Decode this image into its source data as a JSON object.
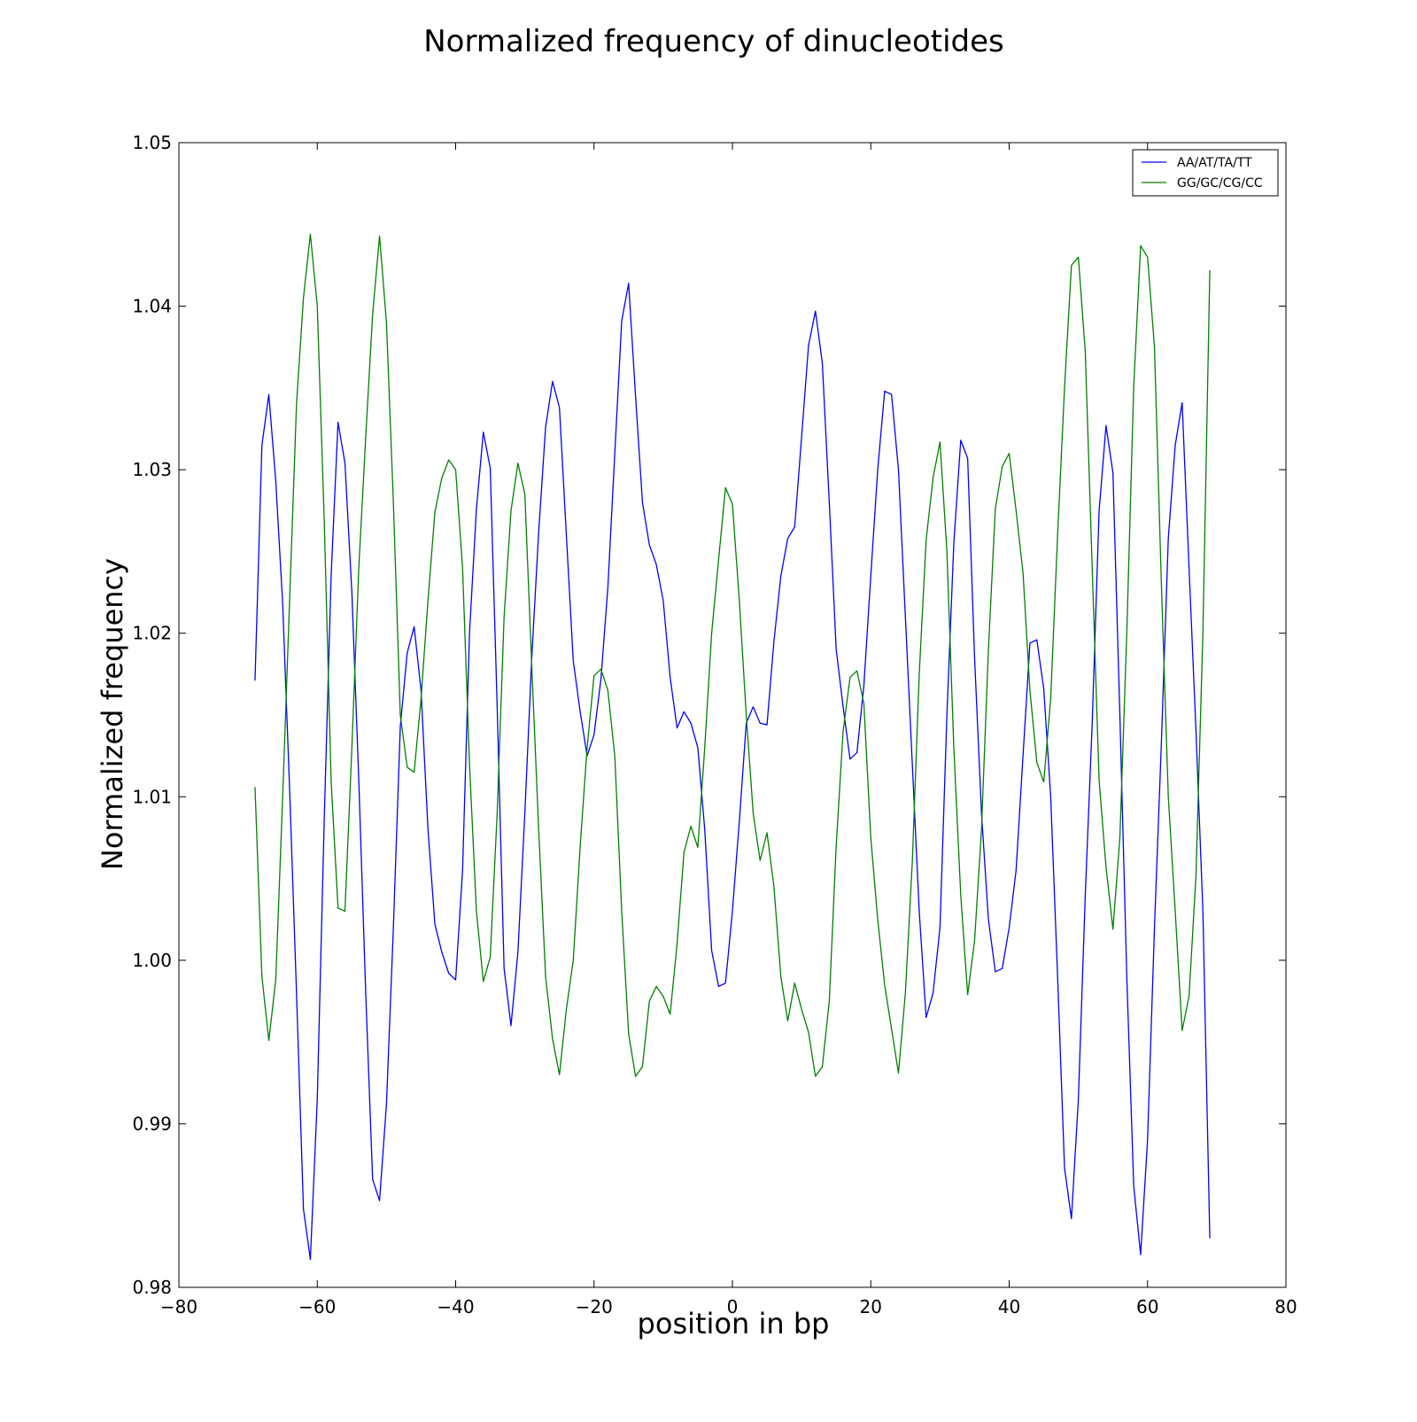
{
  "chart_data": {
    "type": "line",
    "title": "Normalized frequency of dinucleotides",
    "xlabel": "position in bp",
    "ylabel": "Normalized frequency",
    "xlim": [
      -80,
      80
    ],
    "ylim": [
      0.98,
      1.05
    ],
    "xticks": [
      -80,
      -60,
      -40,
      -20,
      0,
      20,
      40,
      60,
      80
    ],
    "xtick_labels": [
      "−80",
      "−60",
      "−40",
      "−20",
      "0",
      "20",
      "40",
      "60",
      "80"
    ],
    "yticks": [
      0.98,
      0.99,
      1.0,
      1.01,
      1.02,
      1.03,
      1.04,
      1.05
    ],
    "ytick_labels": [
      "0.98",
      "0.99",
      "1.00",
      "1.01",
      "1.02",
      "1.03",
      "1.04",
      "1.05"
    ],
    "grid": false,
    "legend_position": "top-right",
    "x": [
      -69,
      -68,
      -67,
      -66,
      -65,
      -64,
      -63,
      -62,
      -61,
      -60,
      -59,
      -58,
      -57,
      -56,
      -55,
      -54,
      -53,
      -52,
      -51,
      -50,
      -49,
      -48,
      -47,
      -46,
      -45,
      -44,
      -43,
      -42,
      -41,
      -40,
      -39,
      -38,
      -37,
      -36,
      -35,
      -34,
      -33,
      -32,
      -31,
      -30,
      -29,
      -28,
      -27,
      -26,
      -25,
      -24,
      -23,
      -22,
      -21,
      -20,
      -19,
      -18,
      -17,
      -16,
      -15,
      -14,
      -13,
      -12,
      -11,
      -10,
      -9,
      -8,
      -7,
      -6,
      -5,
      -4,
      -3,
      -2,
      -1,
      0,
      1,
      2,
      3,
      4,
      5,
      6,
      7,
      8,
      9,
      10,
      11,
      12,
      13,
      14,
      15,
      16,
      17,
      18,
      19,
      20,
      21,
      22,
      23,
      24,
      25,
      26,
      27,
      28,
      29,
      30,
      31,
      32,
      33,
      34,
      35,
      36,
      37,
      38,
      39,
      40,
      41,
      42,
      43,
      44,
      45,
      46,
      47,
      48,
      49,
      50,
      51,
      52,
      53,
      54,
      55,
      56,
      57,
      58,
      59,
      60,
      61,
      62,
      63,
      64,
      65,
      66,
      67,
      68,
      69
    ],
    "series": [
      {
        "name": "AA/AT/TA/TT",
        "color": "#0000ff",
        "values": [
          1.0171,
          1.0315,
          1.0346,
          1.0293,
          1.0218,
          1.0105,
          0.998,
          0.9848,
          0.9817,
          0.9915,
          1.0085,
          1.0235,
          1.0329,
          1.0304,
          1.0225,
          1.011,
          0.998,
          0.9866,
          0.9853,
          0.9912,
          1.002,
          1.0143,
          1.0188,
          1.0204,
          1.0165,
          1.008,
          1.0022,
          1.0005,
          0.9992,
          0.9988,
          1.0055,
          1.02,
          1.0276,
          1.0323,
          1.0301,
          1.0155,
          0.9995,
          0.996,
          1.0005,
          1.009,
          1.0185,
          1.0262,
          1.0326,
          1.0354,
          1.0338,
          1.026,
          1.0183,
          1.0152,
          1.0125,
          1.0138,
          1.0172,
          1.0228,
          1.031,
          1.0391,
          1.0414,
          1.0345,
          1.028,
          1.0254,
          1.0242,
          1.022,
          1.0173,
          1.0142,
          1.0152,
          1.0145,
          1.013,
          1.008,
          1.0006,
          0.9984,
          0.9986,
          1.003,
          1.0085,
          1.0145,
          1.0155,
          1.0145,
          1.0144,
          1.0195,
          1.0235,
          1.0258,
          1.0265,
          1.032,
          1.0376,
          1.0397,
          1.0365,
          1.028,
          1.019,
          1.0155,
          1.0123,
          1.0127,
          1.0168,
          1.0235,
          1.03,
          1.0348,
          1.0346,
          1.03,
          1.021,
          1.012,
          1.003,
          0.9965,
          0.998,
          1.002,
          1.015,
          1.0255,
          1.0318,
          1.0307,
          1.0185,
          1.009,
          1.0025,
          0.9993,
          0.9995,
          1.002,
          1.0055,
          1.0125,
          1.0194,
          1.0196,
          1.0166,
          1.01,
          0.999,
          0.9873,
          0.9842,
          0.9915,
          1.004,
          1.0145,
          1.0275,
          1.0327,
          1.0298,
          1.015,
          0.999,
          0.9862,
          0.982,
          0.989,
          1.002,
          1.0133,
          1.0258,
          1.0315,
          1.0341,
          1.024,
          1.014,
          1.003,
          0.983
        ]
      },
      {
        "name": "GG/GC/CG/CC",
        "color": "#008000",
        "values": [
          1.0106,
          0.999,
          0.9951,
          0.9988,
          1.01,
          1.022,
          1.034,
          1.0405,
          1.0444,
          1.04,
          1.027,
          1.011,
          1.0032,
          1.003,
          1.013,
          1.024,
          1.032,
          1.0395,
          1.0443,
          1.039,
          1.028,
          1.015,
          1.0118,
          1.0115,
          1.016,
          1.022,
          1.0274,
          1.0295,
          1.0306,
          1.03,
          1.024,
          1.012,
          1.003,
          0.9987,
          1.0002,
          1.009,
          1.021,
          1.0275,
          1.0304,
          1.0285,
          1.018,
          1.008,
          0.999,
          0.9952,
          0.993,
          0.997,
          1.0,
          1.007,
          1.013,
          1.0174,
          1.0178,
          1.0165,
          1.0125,
          1.003,
          0.9955,
          0.9929,
          0.9935,
          0.9975,
          0.9984,
          0.9978,
          0.9967,
          1.001,
          1.0066,
          1.0082,
          1.0069,
          1.013,
          1.02,
          1.0245,
          1.0289,
          1.0279,
          1.022,
          1.015,
          1.009,
          1.0061,
          1.0078,
          1.0045,
          0.999,
          0.9963,
          0.9986,
          0.997,
          0.9956,
          0.9929,
          0.9935,
          0.9975,
          1.007,
          1.014,
          1.0173,
          1.0177,
          1.0157,
          1.0075,
          1.0025,
          0.9985,
          0.9958,
          0.9931,
          0.998,
          1.006,
          1.0175,
          1.0257,
          1.0295,
          1.0317,
          1.025,
          1.013,
          1.004,
          0.9979,
          1.0012,
          1.008,
          1.019,
          1.0276,
          1.0302,
          1.031,
          1.0275,
          1.0237,
          1.0165,
          1.0121,
          1.0109,
          1.016,
          1.026,
          1.035,
          1.0425,
          1.043,
          1.0372,
          1.024,
          1.011,
          1.0057,
          1.0019,
          1.0075,
          1.02,
          1.0351,
          1.0437,
          1.043,
          1.0375,
          1.023,
          1.01,
          1.003,
          0.9957,
          0.9978,
          1.0052,
          1.02,
          1.0422
        ]
      }
    ]
  }
}
